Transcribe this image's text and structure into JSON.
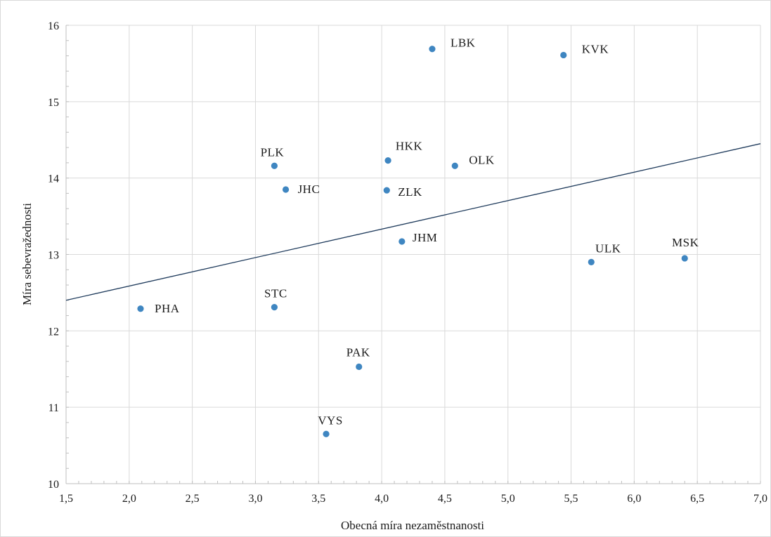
{
  "chart_data": {
    "type": "scatter",
    "xlabel": "Obecná míra nezaměstnanosti",
    "ylabel": "Míra sebevražednosti",
    "xlim": [
      1.5,
      7.0
    ],
    "ylim": [
      10,
      16
    ],
    "x_ticks": [
      "1,5",
      "2,0",
      "2,5",
      "3,0",
      "3,5",
      "4,0",
      "4,5",
      "5,0",
      "5,5",
      "6,0",
      "6,5",
      "7,0"
    ],
    "y_ticks": [
      "10",
      "11",
      "12",
      "13",
      "14",
      "15",
      "16"
    ],
    "grid": true,
    "marker_color": "#3f86c1",
    "trendline_color": "#1f3b5c",
    "points": [
      {
        "label": "PHA",
        "x": 2.09,
        "y": 12.29
      },
      {
        "label": "STC",
        "x": 3.15,
        "y": 12.31
      },
      {
        "label": "PLK",
        "x": 3.15,
        "y": 14.16
      },
      {
        "label": "JHC",
        "x": 3.24,
        "y": 13.85
      },
      {
        "label": "VYS",
        "x": 3.56,
        "y": 10.65
      },
      {
        "label": "PAK",
        "x": 3.82,
        "y": 11.53
      },
      {
        "label": "ZLK",
        "x": 4.04,
        "y": 13.84
      },
      {
        "label": "HKK",
        "x": 4.05,
        "y": 14.23
      },
      {
        "label": "JHM",
        "x": 4.16,
        "y": 13.17
      },
      {
        "label": "LBK",
        "x": 4.4,
        "y": 15.69
      },
      {
        "label": "OLK",
        "x": 4.58,
        "y": 14.16
      },
      {
        "label": "KVK",
        "x": 5.44,
        "y": 15.61
      },
      {
        "label": "ULK",
        "x": 5.66,
        "y": 12.9
      },
      {
        "label": "MSK",
        "x": 6.4,
        "y": 12.95
      }
    ],
    "trendline": {
      "x": [
        1.5,
        7.0
      ],
      "y": [
        12.4,
        14.45
      ]
    }
  }
}
